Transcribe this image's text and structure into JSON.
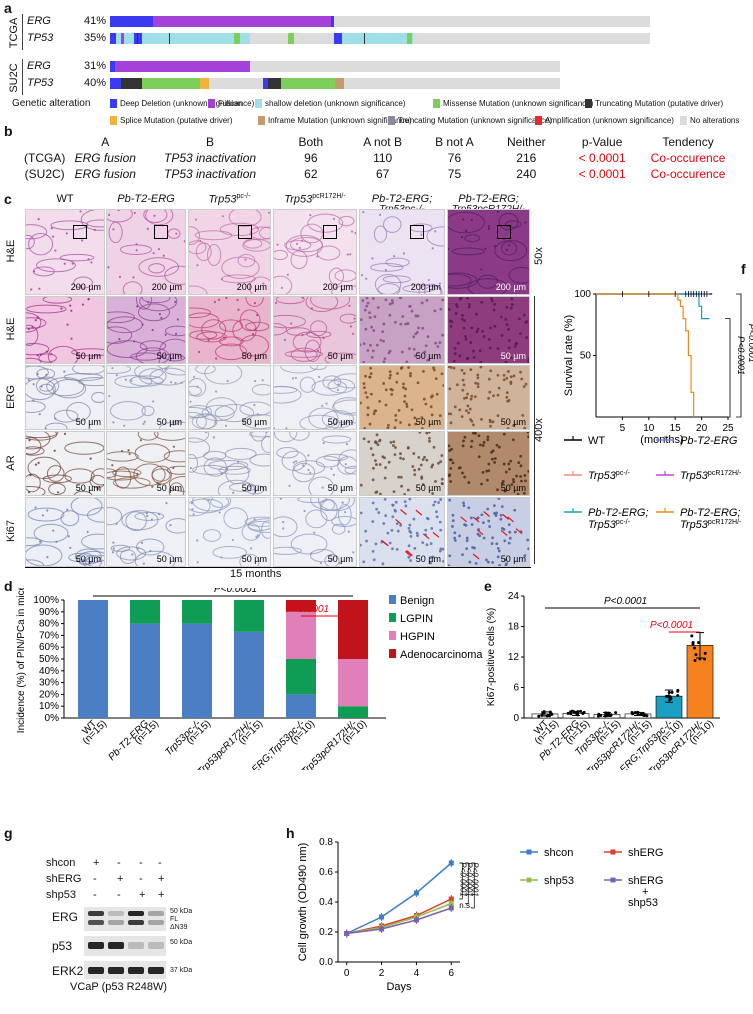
{
  "panels": {
    "a": "a",
    "b": "b",
    "c": "c",
    "d": "d",
    "e": "e",
    "f": "f",
    "g": "g",
    "h": "h"
  },
  "panel_a": {
    "cohorts": [
      {
        "name": "TCGA",
        "rows": [
          {
            "gene": "ERG",
            "pct": "41%"
          },
          {
            "gene": "TP53",
            "pct": "35%"
          }
        ]
      },
      {
        "name": "SU2C",
        "rows": [
          {
            "gene": "ERG",
            "pct": "31%"
          },
          {
            "gene": "TP53",
            "pct": "40%"
          }
        ]
      }
    ],
    "legend_title": "Genetic alteration",
    "legend": [
      {
        "label": "Deep Deletion (unknown significance)",
        "color": "#3a3af0"
      },
      {
        "label": "Fusion",
        "color": "#a441d9"
      },
      {
        "label": "shallow deletion (unknown significance)",
        "color": "#9fdfe8"
      },
      {
        "label": "Missense Mutation (unknown significance)",
        "color": "#7ccf5a"
      },
      {
        "label": "Truncating Mutation (putative driver)",
        "color": "#333333"
      },
      {
        "label": "Splice Mutation (putative driver)",
        "color": "#f0b43c"
      },
      {
        "label": "Inframe Mutation (unknown significance)",
        "color": "#c69a6a"
      },
      {
        "label": "Truncating Mutation (unknown significance)",
        "color": "#8a8aa0"
      },
      {
        "label": "Amplification (unknown significance)",
        "color": "#e8282b"
      },
      {
        "label": "No alterations",
        "color": "#dcdcdc"
      }
    ]
  },
  "panel_b": {
    "headers": [
      "A",
      "B",
      "Both",
      "A not B",
      "B not A",
      "Neither",
      "p-Value",
      "Tendency"
    ],
    "rows": [
      {
        "cohort": "(TCGA)",
        "a": "ERG fusion",
        "b": "TP53 inactivation",
        "both": "96",
        "anotb": "110",
        "bnota": "76",
        "neither": "216",
        "p": "< 0.0001",
        "tendency": "Co-occurence"
      },
      {
        "cohort": "(SU2C)",
        "a": "ERG fusion",
        "b": "TP53 inactivation",
        "both": "62",
        "anotb": "67",
        "bnota": "75",
        "neither": "240",
        "p": "< 0.0001",
        "tendency": "Co-occurence"
      }
    ]
  },
  "panel_c": {
    "columns": [
      "WT",
      "Pb-T2-ERG",
      "Trp53",
      "Trp53",
      "Pb-T2-ERG;",
      "Pb-T2-ERG;"
    ],
    "col_sup": [
      "",
      "",
      "pc-/-",
      "pcR172H/-",
      "",
      ""
    ],
    "col_line2": [
      "",
      "",
      "",
      "",
      "Trp53pc-/-",
      "Trp53pcR172H/-"
    ],
    "rows": [
      "H&E",
      "H&E",
      "ERG",
      "AR",
      "Ki67"
    ],
    "mag1": "50x",
    "mag2": "400x",
    "scale_200": "200 µm",
    "scale_50": "50 µm",
    "footer": "15 months"
  },
  "panel_d": {
    "ylabel": "Incidence (%) of PIN/PCa in mice",
    "pval_black": "P<0.0001",
    "pval_red": "P<0.0001",
    "colors": {
      "Benign": "#4b7ec2",
      "LGPIN": "#0f9c55",
      "HGPIN": "#e07fb8",
      "Adenocarcinoma": "#c0141d"
    }
  },
  "panel_e": {
    "ylabel": "Ki67-positive cells (%)",
    "pval_black": "P<0.0001",
    "pval_red": "P<0.0001"
  },
  "panel_f": {
    "ylabel": "Survival rate (%)",
    "xlabel": "(months)",
    "pvals": [
      "P<0.0001",
      "P<0.0001"
    ],
    "legend": [
      {
        "label": "WT",
        "color": "#000000"
      },
      {
        "label": "Pb-T2-ERG",
        "color": "#7b7fe0"
      },
      {
        "label": "Trp53",
        "sup": "pc-/-",
        "color": "#f08a7a"
      },
      {
        "label": "Trp53",
        "sup": "pcR172H/-",
        "color": "#d03cd6"
      },
      {
        "label": "Pb-T2-ERG;",
        "line2": "Trp53",
        "sup": "pc-/-",
        "color": "#1a9fc0"
      },
      {
        "label": "Pb-T2-ERG;",
        "line2": "Trp53",
        "sup": "pcR172H/-",
        "color": "#f08a1a"
      }
    ]
  },
  "panel_g": {
    "rows": [
      {
        "label": "shcon",
        "marks": [
          "+",
          "-",
          "-",
          "-"
        ]
      },
      {
        "label": "shERG",
        "marks": [
          "-",
          "+",
          "-",
          "+"
        ]
      },
      {
        "label": "shp53",
        "marks": [
          "-",
          "-",
          "+",
          "+"
        ]
      }
    ],
    "blots": [
      "ERG",
      "p53",
      "ERK2"
    ],
    "mw": [
      "50 kDa",
      "FL",
      "ΔN39",
      "50 kDa",
      "37 kDa"
    ],
    "caption": "VCaP (p53 R248W)"
  },
  "panel_h": {
    "ylabel": "Cell growth (OD490 nm)",
    "xlabel": "Days",
    "pvals": [
      "P<0.0001",
      "P<0.0001",
      "P<0.0001",
      "n.s."
    ],
    "legend": [
      {
        "label": "shcon",
        "color": "#3d7cc9"
      },
      {
        "label": "shERG",
        "color": "#d9402b"
      },
      {
        "label": "shp53",
        "color": "#8fc34f"
      },
      {
        "label": "shERG\n+\nshp53",
        "color": "#7e5fb0"
      }
    ]
  },
  "chart_data": [
    {
      "id": "d",
      "type": "bar",
      "categories": [
        "WT (n=15)",
        "Pb-T2-ERG (n=15)",
        "Trp53pc-/- (n=15)",
        "Trp53pcR172H/- (n=15)",
        "Pb-T2-ERG;Trp53pc-/- (n=10)",
        "Pb-T2-ERG;Trp53pcR172H/- (n=10)"
      ],
      "stacked": true,
      "series": [
        {
          "name": "Benign",
          "values": [
            100,
            80,
            80,
            73,
            20,
            0
          ]
        },
        {
          "name": "LGPIN",
          "values": [
            0,
            20,
            20,
            27,
            30,
            10
          ]
        },
        {
          "name": "HGPIN",
          "values": [
            0,
            0,
            0,
            0,
            40,
            40
          ]
        },
        {
          "name": "Adenocarcinoma",
          "values": [
            0,
            0,
            0,
            0,
            10,
            50
          ]
        }
      ],
      "yticks": [
        "0%",
        "10%",
        "20%",
        "30%",
        "40%",
        "50%",
        "60%",
        "70%",
        "80%",
        "90%",
        "100%"
      ],
      "ylim": [
        0,
        100
      ],
      "xlabels": [
        "WT",
        "Pb-T2-ERG",
        "Trp53pc-/-",
        "Trp53pcR172H/-",
        "Pb-T2-ERG;Trp53pc-/-",
        "Pb-T2-ERG;Trp53pcR172H/-"
      ],
      "ns": [
        "(n=15)",
        "(n=15)",
        "(n=15)",
        "(n=15)",
        "(n=10)",
        "(n=10)"
      ]
    },
    {
      "id": "e",
      "type": "bar",
      "categories": [
        "WT (n=15)",
        "Pb-T2-ERG (n=15)",
        "Trp53pc-/- (n=15)",
        "Trp53pcR172H/- (n=15)",
        "Pb-T2-ERG;Trp53pc-/- (n=10)",
        "Pb-T2-ERG;Trp53pcR172H/- (n=10)"
      ],
      "values": [
        0.8,
        0.9,
        0.7,
        0.8,
        4.3,
        14.3
      ],
      "errors": [
        0.4,
        0.4,
        0.4,
        0.3,
        1.2,
        2.5
      ],
      "colors": [
        "#ffffff",
        "#ffffff",
        "#ffffff",
        "#ffffff",
        "#1a9fc0",
        "#f5821f"
      ],
      "ylim": [
        0,
        24
      ],
      "yticks": [
        0,
        6,
        12,
        18,
        24
      ],
      "xlabels": [
        "WT",
        "Pb-T2-ERG",
        "Trp53pc-/-",
        "Trp53pcR172H/-",
        "Pb-T2-ERG;Trp53pc-/-",
        "Pb-T2-ERG;Trp53pcR172H/-"
      ],
      "ns": [
        "(n=15)",
        "(n=15)",
        "(n=15)",
        "(n=15)",
        "(n=10)",
        "(n=10)"
      ]
    },
    {
      "id": "f",
      "type": "line",
      "xlim": [
        0,
        25
      ],
      "ylim": [
        0,
        100
      ],
      "xticks": [
        5,
        10,
        15,
        20,
        25
      ],
      "yticks": [
        50,
        100
      ],
      "series": [
        {
          "name": "WT",
          "color": "#000000",
          "points": [
            [
              0,
              100
            ],
            [
              22,
              100
            ]
          ]
        },
        {
          "name": "Pb-T2-ERG",
          "color": "#7b7fe0",
          "points": [
            [
              0,
              100
            ],
            [
              21.5,
              100
            ]
          ]
        },
        {
          "name": "Pb-T2-ERG;Trp53pc-/-",
          "color": "#1a9fc0",
          "points": [
            [
              0,
              100
            ],
            [
              19.5,
              100
            ],
            [
              19.5,
              90
            ],
            [
              20,
              90
            ],
            [
              20,
              80
            ],
            [
              21.5,
              80
            ]
          ]
        },
        {
          "name": "Pb-T2-ERG;Trp53pcR172H/-",
          "color": "#f08a1a",
          "points": [
            [
              0,
              100
            ],
            [
              15.5,
              100
            ],
            [
              15.5,
              95
            ],
            [
              16,
              95
            ],
            [
              16,
              90
            ],
            [
              16.5,
              90
            ],
            [
              16.5,
              80
            ],
            [
              17,
              80
            ],
            [
              17,
              70
            ],
            [
              17.5,
              70
            ],
            [
              17.5,
              50
            ],
            [
              18,
              50
            ],
            [
              18,
              20
            ],
            [
              18.5,
              20
            ],
            [
              18.5,
              0
            ]
          ]
        }
      ]
    },
    {
      "id": "h",
      "type": "line",
      "x": [
        0,
        2,
        4,
        6
      ],
      "xlim": [
        -0.5,
        6.5
      ],
      "ylim": [
        0.0,
        0.8
      ],
      "yticks": [
        0.0,
        0.2,
        0.4,
        0.6,
        0.8
      ],
      "series": [
        {
          "name": "shcon",
          "color": "#3d7cc9",
          "values": [
            0.19,
            0.3,
            0.46,
            0.66
          ]
        },
        {
          "name": "shERG",
          "color": "#d9402b",
          "values": [
            0.19,
            0.24,
            0.31,
            0.42
          ]
        },
        {
          "name": "shp53",
          "color": "#8fc34f",
          "values": [
            0.19,
            0.23,
            0.3,
            0.39
          ]
        },
        {
          "name": "shERG+shp53",
          "color": "#7e5fb0",
          "values": [
            0.19,
            0.22,
            0.28,
            0.36
          ]
        }
      ]
    }
  ]
}
